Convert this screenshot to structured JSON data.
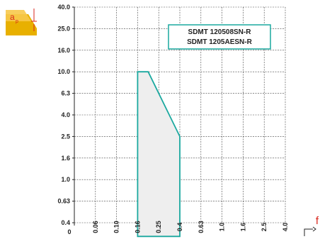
{
  "chart_data": {
    "type": "area",
    "y_axis": {
      "ticks": [
        "40.0",
        "25.0",
        "16.0",
        "10.0",
        "6.3",
        "4.0",
        "2.5",
        "1.6",
        "1.0",
        "0.63",
        "0.4"
      ],
      "scale": "log-ordinal"
    },
    "x_axis": {
      "ticks": [
        "0",
        "0.06",
        "0.10",
        "0.16",
        "0.25",
        "0.4",
        "0.63",
        "1.0",
        "1.6",
        "2.5",
        "4.0"
      ],
      "label": "f",
      "scale": "log-ordinal"
    },
    "legend": [
      "SDMT 120508SN-R",
      "SDMT 1205AESN-R"
    ],
    "legend_position": "top-right",
    "grid": true,
    "region": [
      {
        "f": 0.16,
        "ap": 0.3
      },
      {
        "f": 0.16,
        "ap": 10.0
      },
      {
        "f": 0.2,
        "ap": 10.0
      },
      {
        "f": 0.4,
        "ap": 2.5
      },
      {
        "f": 0.4,
        "ap": 0.3
      }
    ],
    "colors": {
      "outline": "#1aa89f",
      "fill": "#eeeeee",
      "grid": "#444444"
    }
  },
  "icons": {
    "depth_icon": "ap-depth-icon",
    "depth_label": "a",
    "depth_sub": "p",
    "feed_icon": "feed-icon"
  }
}
